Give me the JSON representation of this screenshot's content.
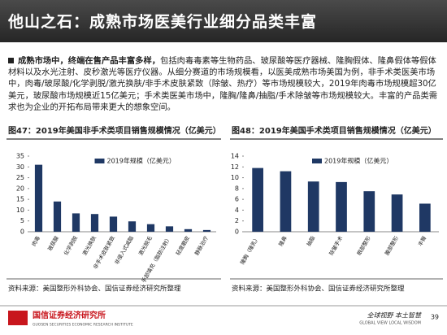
{
  "header": {
    "title": "他山之石：成熟市场医美行业细分品类丰富"
  },
  "paragraph": {
    "lead": "成熟市场中，终端在售产品丰富多样，",
    "body": "包括肉毒毒素等生物药品、玻尿酸等医疗器械、隆胸假体、隆鼻假体等假体材料以及水光注射、皮秒激光等医疗仪器。从细分赛道的市场规模看，以医美成熟市场美国为例，非手术类医美市场中，肉毒/玻尿酸/化学剥脱/激光换肤/非手术皮肤紧致（除皱、热疗）等市场规模较大，2019年肉毒市场规模超30亿美元，玻尿酸市场规模近15亿美元；手术类医美市场中，隆胸/隆鼻/抽脂/手术除皱等市场规模较大。丰富的产品类需求也为企业的开拓布局带来更大的想象空间。"
  },
  "chart_data": [
    {
      "type": "bar",
      "title": "图47：2019年美国非手术类项目销售规模情况（亿美元）",
      "categories": [
        "肉毒",
        "玻尿酸",
        "化学剥脱",
        "激光换肤",
        "非手术皮肤紧致",
        "非侵入式减脂",
        "激光脱毛",
        "手部填充（脂肪注射）",
        "轻度磨皮",
        "静脉治疗"
      ],
      "series": [
        {
          "name": "2019年规模（亿美元）",
          "color": "#1f3864",
          "values": [
            31,
            14,
            8.5,
            8.2,
            7,
            4.8,
            3.5,
            2.5,
            1.2,
            0.8
          ]
        }
      ],
      "ylim": [
        0,
        35
      ],
      "yticks": [
        0,
        5,
        10,
        15,
        20,
        25,
        30,
        35
      ],
      "source": "资料来源：美国整形外科协会、国信证券经济研究所整理"
    },
    {
      "type": "bar",
      "title": "图48：2019年美国手术类项目销售规模情况（亿美元）",
      "categories": [
        "隆胸（隆乳）",
        "隆鼻",
        "抽脂",
        "除皱手术",
        "眼部整形",
        "腹部整形",
        "丰臀"
      ],
      "series": [
        {
          "name": "2019年规模（亿美元）",
          "color": "#1f3864",
          "values": [
            11.8,
            11.2,
            9.3,
            9.2,
            7.5,
            6.9,
            5.2
          ]
        }
      ],
      "ylim": [
        0,
        14
      ],
      "yticks": [
        0,
        2,
        4,
        6,
        8,
        10,
        12,
        14
      ],
      "source": "资料来源：美国整形外科协会、国信证券经济研究所整理"
    }
  ],
  "footer": {
    "org": "国信证券经济研究所",
    "org_en": "GUOSEN SECURITIES ECONOMIC RESEARCH INSTITUTE",
    "slogan": "全球视野 本土智慧",
    "slogan_en": "GLOBAL VIEW LOCAL WISDOM",
    "page": "39"
  }
}
